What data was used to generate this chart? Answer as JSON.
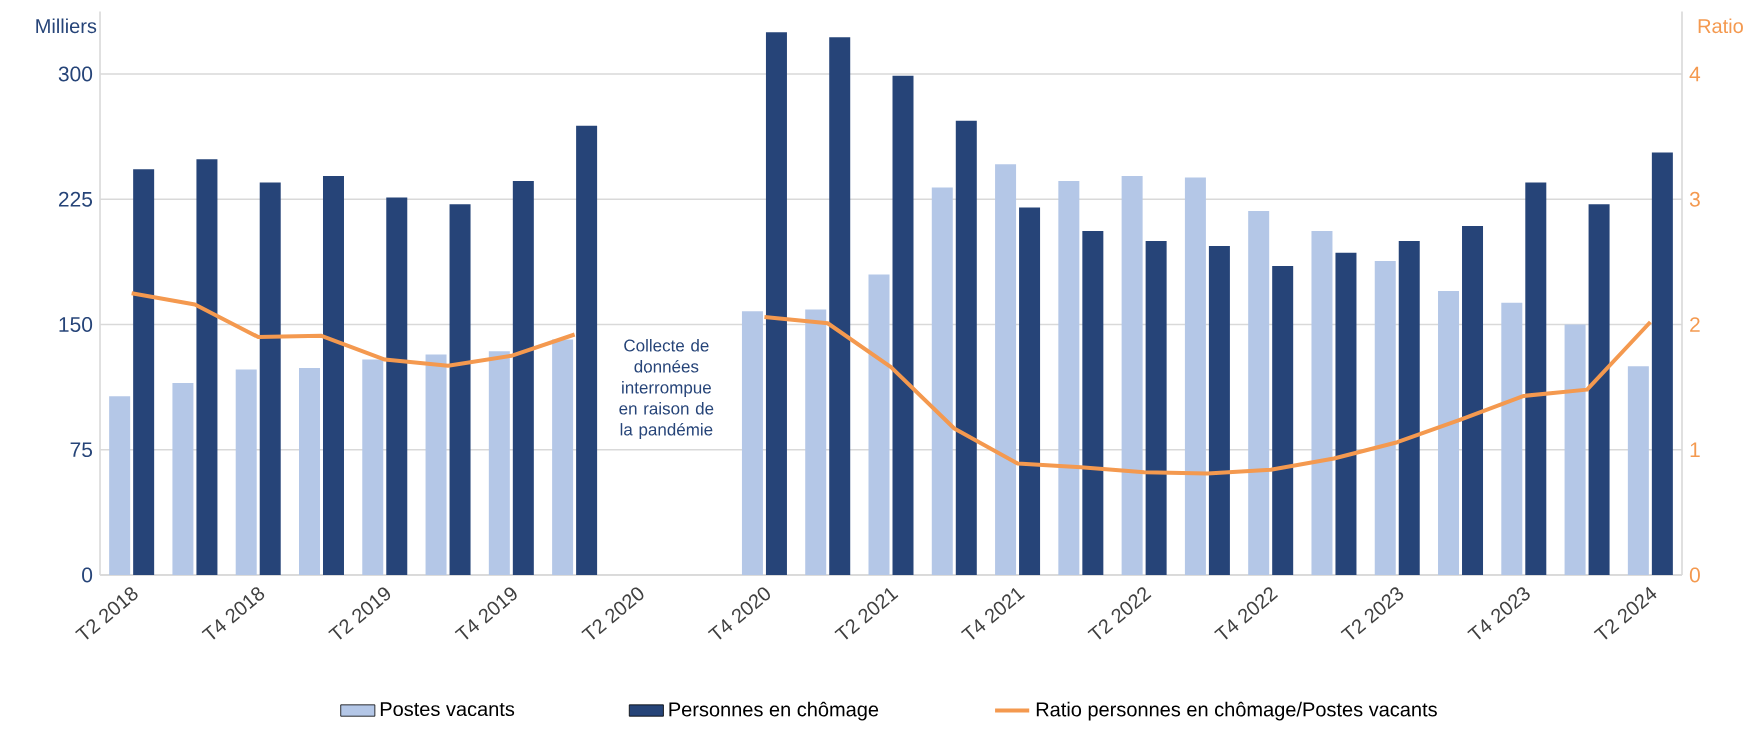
{
  "chart_data": {
    "type": "bar",
    "ylabel": "Milliers",
    "y2label": "Ratio",
    "categories": [
      "T2 2018",
      null,
      "T4 2018",
      null,
      "T2 2019",
      null,
      "T4 2019",
      null,
      "T2 2020",
      null,
      "T4 2020",
      null,
      "T2 2021",
      null,
      "T4 2021",
      null,
      "T2 2022",
      null,
      "T4 2022",
      null,
      "T2 2023",
      null,
      "T4 2023",
      null,
      "T2 2024"
    ],
    "series": [
      {
        "name": "Postes vacants",
        "color": "#b4c7e7",
        "values": [
          107,
          115,
          123,
          124,
          129,
          132,
          134,
          141,
          null,
          null,
          158,
          159,
          180,
          232,
          246,
          236,
          239,
          238,
          218,
          206,
          188,
          170,
          163,
          150,
          125
        ]
      },
      {
        "name": "Personnes en chômage",
        "color": "#264478",
        "values": [
          243,
          249,
          235,
          239,
          226,
          222,
          236,
          269,
          null,
          null,
          325,
          322,
          299,
          272,
          220,
          206,
          200,
          197,
          185,
          193,
          200,
          209,
          235,
          222,
          253
        ]
      },
      {
        "name": "Ratio personnes en chômage/Postes vacants",
        "type": "line",
        "axis": "y2",
        "color": "#f4994f",
        "values": [
          2.25,
          2.16,
          1.9,
          1.91,
          1.72,
          1.67,
          1.75,
          1.92,
          null,
          null,
          2.06,
          2.01,
          1.66,
          1.17,
          0.89,
          0.86,
          0.82,
          0.81,
          0.84,
          0.93,
          1.06,
          1.24,
          1.43,
          1.48,
          2.02
        ]
      }
    ],
    "ylim": [
      0,
      337.5
    ],
    "yticks": [
      0,
      75,
      150,
      225,
      300
    ],
    "y2lim": [
      0,
      4.5
    ],
    "y2ticks": [
      0,
      1,
      2,
      3,
      4
    ],
    "grid": "y",
    "legend": "bottom",
    "annotations": [
      "Collecte de données interrompue en raison de la pandémie"
    ]
  }
}
